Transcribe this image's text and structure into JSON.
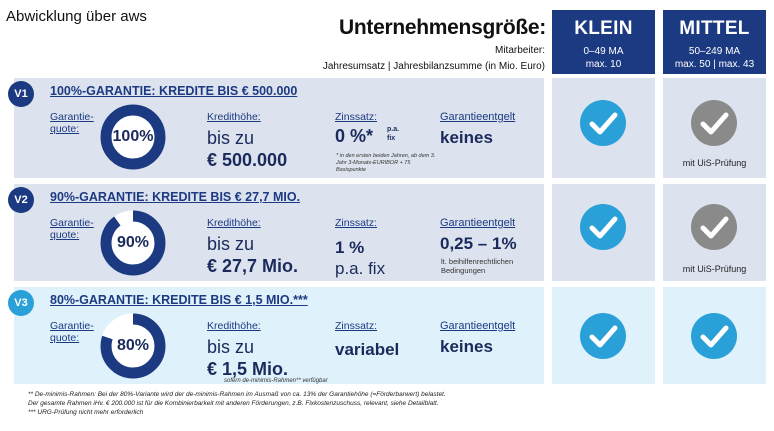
{
  "caption": "Abwicklung über aws",
  "header": {
    "title": "Unternehmensgröße:",
    "mitarbeiter_label": "Mitarbeiter:",
    "jahresumsatz_label": "Jahresumsatz | Jahresbilanzsumme (in Mio. Euro)"
  },
  "columns": [
    {
      "title": "KLEIN",
      "mitarbeiter": "0–49 MA",
      "umsatz": "max. 10"
    },
    {
      "title": "MITTEL",
      "mitarbeiter": "50–249 MA",
      "umsatz": "max. 50 | max. 43"
    }
  ],
  "labels": {
    "garantiequote": "Garantie-quote:",
    "kredithoehe": "Kredithöhe:",
    "zinssatz": "Zinssatz:",
    "garantieentgelt": "Garantieentgelt"
  },
  "rows": [
    {
      "badge": "V1",
      "title": "100%-GARANTIE: KREDITE BIS € 500.000",
      "quote": "100%",
      "quote_fraction": 1.0,
      "kredit_line1": "bis zu",
      "kredit_line2": "€ 500.000",
      "zins_main": "0 %*",
      "zins_pa": "p.a.",
      "zins_fix": "fix",
      "zins_note": "* in den ersten beiden Jahren, ab dem 3. Jahr 3-Monats-EURIBOR + 75 Basispunkte",
      "entgelt": "keines",
      "klein": "check",
      "mittel": "check-grey",
      "mittel_note": "mit UiS-Prüfung"
    },
    {
      "badge": "V2",
      "title": "90%-GARANTIE: KREDITE BIS € 27,7 MIO.",
      "quote": "90%",
      "quote_fraction": 0.9,
      "kredit_line1": "bis zu",
      "kredit_line2": "€ 27,7 Mio.",
      "zins_line1": "1 %",
      "zins_line2": "p.a. fix",
      "entgelt": "0,25 – 1%",
      "entgelt_note": "lt. beihilfenrechtlichen Bedingungen",
      "klein": "check",
      "mittel": "check-grey",
      "mittel_note": "mit UiS-Prüfung"
    },
    {
      "badge": "V3",
      "title": "80%-GARANTIE: KREDITE BIS € 1,5 MIO.***",
      "quote": "80%",
      "quote_fraction": 0.8,
      "kredit_line1": "bis zu",
      "kredit_line2": "€ 1,5 Mio.",
      "kredit_note": "sofern de-minimis-Rahmen** verfügbar",
      "zins": "variabel",
      "entgelt": "keines",
      "klein": "check",
      "mittel": "check"
    }
  ],
  "footnotes": [
    "** De-minimis-Rahmen: Bei der 80%-Variante wird der de-minimis-Rahmen im Ausmaß von ca. 13% der Garantiehöhe (=Förderbarwert) belastet.",
    "Der gesamte Rahmen iHv. € 200.000 ist für die Kombinierbarkeit mit anderen Förderungen, z.B. Fixkostenzuschuss, relevant, siehe Detailblatt.",
    "*** URG-Prüfung nicht mehr erforderlich"
  ],
  "colors": {
    "navy": "#1c3a82",
    "light_blue": "#2aa0d8",
    "check_grey": "#8a8a8a",
    "row_grey": "#dde3ee",
    "row_light": "#dff1fa"
  }
}
